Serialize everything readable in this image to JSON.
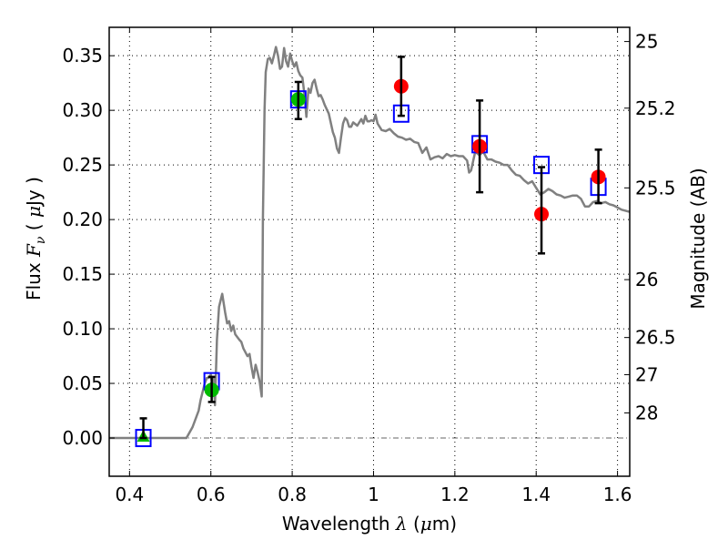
{
  "chart_data": {
    "type": "scatter",
    "title": "",
    "xlabel": "Wavelength  λ (μm)",
    "xlabel_parts": {
      "pre": "Wavelength  ",
      "sym": "λ",
      "post": " (",
      "mu": "μ",
      "unit": "m)"
    },
    "ylabel": "Flux  Fν ( μJy )",
    "ylabel_parts": {
      "pre": "Flux  ",
      "sym": "F",
      "sub": "ν",
      "open": "  ( ",
      "mu": "μ",
      "unit": "Jy )"
    },
    "y2label": "Magnitude (AB)",
    "xlim": [
      0.35,
      1.63
    ],
    "ylim": [
      -0.035,
      0.376
    ],
    "grid": true,
    "x_ticks": [
      {
        "value": 0.4,
        "label": "0.4"
      },
      {
        "value": 0.6,
        "label": "0.6"
      },
      {
        "value": 0.8,
        "label": "0.8"
      },
      {
        "value": 1.0,
        "label": "1"
      },
      {
        "value": 1.2,
        "label": "1.2"
      },
      {
        "value": 1.4,
        "label": "1.4"
      },
      {
        "value": 1.6,
        "label": "1.6"
      }
    ],
    "y_ticks": [
      {
        "value": 0.0,
        "label": "0.00"
      },
      {
        "value": 0.05,
        "label": "0.05"
      },
      {
        "value": 0.1,
        "label": "0.10"
      },
      {
        "value": 0.15,
        "label": "0.15"
      },
      {
        "value": 0.2,
        "label": "0.20"
      },
      {
        "value": 0.25,
        "label": "0.25"
      },
      {
        "value": 0.3,
        "label": "0.30"
      },
      {
        "value": 0.35,
        "label": "0.35"
      }
    ],
    "y2_ticks": [
      {
        "flux": 0.363,
        "label": "25"
      },
      {
        "flux": 0.302,
        "label": "25.2"
      },
      {
        "flux": 0.229,
        "label": "25.5"
      },
      {
        "flux": 0.145,
        "label": "26"
      },
      {
        "flux": 0.092,
        "label": "26.5"
      },
      {
        "flux": 0.058,
        "label": "27"
      },
      {
        "flux": 0.023,
        "label": "28"
      }
    ],
    "series": [
      {
        "name": "model-spectrum",
        "kind": "line",
        "color": "#808080",
        "x": [
          0.35,
          0.54,
          0.555,
          0.57,
          0.575,
          0.585,
          0.59,
          0.595,
          0.6,
          0.605,
          0.607,
          0.61,
          0.615,
          0.62,
          0.628,
          0.635,
          0.64,
          0.645,
          0.65,
          0.655,
          0.66,
          0.67,
          0.675,
          0.68,
          0.69,
          0.695,
          0.7,
          0.705,
          0.71,
          0.715,
          0.72,
          0.725,
          0.728,
          0.732,
          0.735,
          0.74,
          0.745,
          0.75,
          0.755,
          0.76,
          0.765,
          0.77,
          0.775,
          0.78,
          0.785,
          0.79,
          0.795,
          0.8,
          0.805,
          0.81,
          0.815,
          0.82,
          0.825,
          0.83,
          0.835,
          0.84,
          0.845,
          0.85,
          0.855,
          0.86,
          0.865,
          0.87,
          0.875,
          0.88,
          0.89,
          0.9,
          0.905,
          0.91,
          0.915,
          0.92,
          0.925,
          0.93,
          0.935,
          0.94,
          0.945,
          0.95,
          0.96,
          0.97,
          0.975,
          0.98,
          0.985,
          0.99,
          0.995,
          1.0,
          1.005,
          1.01,
          1.02,
          1.03,
          1.04,
          1.05,
          1.06,
          1.07,
          1.08,
          1.09,
          1.1,
          1.11,
          1.12,
          1.13,
          1.14,
          1.15,
          1.16,
          1.17,
          1.18,
          1.19,
          1.2,
          1.21,
          1.22,
          1.23,
          1.235,
          1.24,
          1.25,
          1.26,
          1.27,
          1.28,
          1.29,
          1.3,
          1.31,
          1.32,
          1.33,
          1.34,
          1.35,
          1.36,
          1.37,
          1.38,
          1.39,
          1.4,
          1.41,
          1.42,
          1.43,
          1.44,
          1.45,
          1.46,
          1.47,
          1.48,
          1.49,
          1.5,
          1.51,
          1.52,
          1.53,
          1.54,
          1.55,
          1.56,
          1.57,
          1.58,
          1.59,
          1.6,
          1.61,
          1.63
        ],
        "y": [
          0.0,
          0.0,
          0.01,
          0.025,
          0.035,
          0.05,
          0.055,
          0.055,
          0.058,
          0.045,
          0.055,
          0.03,
          0.09,
          0.12,
          0.132,
          0.115,
          0.105,
          0.107,
          0.098,
          0.103,
          0.095,
          0.09,
          0.088,
          0.082,
          0.075,
          0.077,
          0.065,
          0.055,
          0.067,
          0.06,
          0.052,
          0.038,
          0.2,
          0.3,
          0.335,
          0.347,
          0.348,
          0.343,
          0.35,
          0.358,
          0.35,
          0.338,
          0.34,
          0.357,
          0.345,
          0.34,
          0.352,
          0.345,
          0.34,
          0.344,
          0.336,
          0.332,
          0.33,
          0.315,
          0.294,
          0.32,
          0.316,
          0.325,
          0.328,
          0.32,
          0.313,
          0.314,
          0.31,
          0.305,
          0.297,
          0.28,
          0.275,
          0.265,
          0.261,
          0.275,
          0.288,
          0.293,
          0.291,
          0.285,
          0.285,
          0.289,
          0.286,
          0.292,
          0.288,
          0.295,
          0.29,
          0.29,
          0.291,
          0.29,
          0.296,
          0.288,
          0.282,
          0.281,
          0.283,
          0.279,
          0.276,
          0.275,
          0.273,
          0.274,
          0.271,
          0.27,
          0.261,
          0.266,
          0.255,
          0.257,
          0.258,
          0.256,
          0.26,
          0.258,
          0.259,
          0.258,
          0.258,
          0.254,
          0.243,
          0.245,
          0.262,
          0.259,
          0.262,
          0.255,
          0.255,
          0.253,
          0.252,
          0.25,
          0.25,
          0.245,
          0.241,
          0.24,
          0.236,
          0.233,
          0.235,
          0.229,
          0.223,
          0.225,
          0.228,
          0.226,
          0.223,
          0.222,
          0.22,
          0.221,
          0.222,
          0.222,
          0.219,
          0.212,
          0.212,
          0.216,
          0.217,
          0.215,
          0.216,
          0.214,
          0.213,
          0.211,
          0.209,
          0.207
        ]
      },
      {
        "name": "model-photometry",
        "kind": "open-square",
        "color": "#0000ff",
        "x": [
          0.434,
          0.602,
          0.815,
          1.068,
          1.261,
          1.413,
          1.553
        ],
        "y": [
          0.0,
          0.052,
          0.31,
          0.297,
          0.269,
          0.25,
          0.23
        ]
      },
      {
        "name": "observed-detections",
        "kind": "circle",
        "color": "#00bb00",
        "x": [
          0.602,
          0.815
        ],
        "y": [
          0.044,
          0.31
        ],
        "err_low": [
          0.033,
          0.292
        ],
        "err_high": [
          0.056,
          0.326
        ]
      },
      {
        "name": "observed-nondetection",
        "kind": "triangle",
        "color": "#00bb00",
        "x": [
          0.434
        ],
        "y": [
          0.0
        ],
        "err_low": [
          0.0
        ],
        "err_high": [
          0.018
        ]
      },
      {
        "name": "observed-ir",
        "kind": "circle",
        "color": "#ff0000",
        "x": [
          1.068,
          1.261,
          1.413,
          1.553
        ],
        "y": [
          0.322,
          0.267,
          0.205,
          0.239
        ],
        "err_low": [
          0.295,
          0.225,
          0.169,
          0.215
        ],
        "err_high": [
          0.349,
          0.309,
          0.248,
          0.264
        ]
      }
    ]
  }
}
